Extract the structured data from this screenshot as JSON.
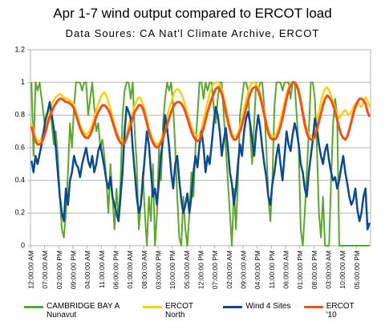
{
  "chart_data": {
    "type": "line",
    "title": "Apr 1-7 wind output compared to ERCOT load",
    "subtitle": "Data Soures: CA Nat'l Climate Archive, ERCOT",
    "ylim": [
      0,
      1.2
    ],
    "yticks": [
      0,
      0.2,
      0.4,
      0.6,
      0.8,
      1,
      1.2
    ],
    "grid": true,
    "categories": [
      "12:00:00 AM",
      null,
      null,
      null,
      null,
      null,
      null,
      "07:00:00 AM",
      null,
      null,
      null,
      null,
      null,
      null,
      "02:00:00 PM",
      null,
      null,
      null,
      null,
      null,
      null,
      "09:00:00 PM",
      null,
      null,
      null,
      null,
      null,
      null,
      "04:00:00 AM",
      null,
      null,
      null,
      null,
      null,
      null,
      "11:00:00 AM",
      null,
      null,
      null,
      null,
      null,
      null,
      "06:00:00 PM",
      null,
      null,
      null,
      null,
      null,
      null,
      "01:00:00 AM",
      null,
      null,
      null,
      null,
      null,
      null,
      "08:00:00 AM",
      null,
      null,
      null,
      null,
      null,
      null,
      "03:00:00 PM",
      null,
      null,
      null,
      null,
      null,
      null,
      "10:00:00 PM",
      null,
      null,
      null,
      null,
      null,
      null,
      "05:00:00 AM",
      null,
      null,
      null,
      null,
      null,
      null,
      "12:00:00 PM",
      null,
      null,
      null,
      null,
      null,
      null,
      "07:00:00 PM",
      null,
      null,
      null,
      null,
      null,
      null,
      "02:00:00 AM",
      null,
      null,
      null,
      null,
      null,
      null,
      "09:00:00 AM",
      null,
      null,
      null,
      null,
      null,
      null,
      "04:00:00 PM",
      null,
      null,
      null,
      null,
      null,
      null,
      "11:00:00 PM",
      null,
      null,
      null,
      null,
      null,
      null,
      "06:00:00 AM",
      null,
      null,
      null,
      null,
      null,
      null,
      "01:00:00 PM",
      null,
      null,
      null,
      null,
      null,
      null,
      "08:00:00 PM",
      null,
      null,
      null,
      null,
      null,
      null,
      "03:00:00 AM",
      null,
      null,
      null,
      null,
      null,
      null,
      "10:00:00 AM",
      null,
      null,
      null,
      null,
      null,
      null,
      "05:00:00 PM",
      null,
      null,
      null,
      null,
      null,
      null
    ],
    "series": [
      {
        "name": "CAMBRIDGE BAY A Nunavut",
        "color": "#5ea52d",
        "width": 2,
        "values": [
          1.0,
          0.55,
          1.0,
          0.95,
          1.0,
          0.9,
          0.8,
          0.7,
          0.82,
          0.88,
          0.75,
          0.62,
          0.7,
          0.55,
          0.3,
          0.1,
          0.05,
          0.2,
          0.45,
          0.75,
          0.6,
          0.85,
          1.0,
          1.0,
          1.0,
          0.95,
          1.0,
          1.0,
          0.8,
          0.9,
          1.0,
          0.85,
          0.7,
          0.75,
          0.6,
          0.65,
          0.55,
          0.4,
          0.2,
          0.5,
          0.3,
          0.1,
          0.35,
          0.15,
          0.4,
          0.8,
          0.95,
          1.0,
          1.0,
          0.9,
          1.0,
          0.7,
          0.5,
          0.1,
          0.25,
          0.45,
          0.2,
          0.0,
          0.3,
          0.15,
          0.5,
          0.0,
          0.2,
          0.6,
          0.4,
          0.75,
          0.9,
          1.0,
          0.95,
          1.0,
          0.85,
          0.6,
          0.3,
          0.05,
          0.0,
          0.3,
          0.1,
          0.0,
          0.2,
          0.45,
          0.3,
          0.6,
          0.8,
          1.0,
          1.0,
          0.9,
          1.0,
          0.95,
          1.0,
          1.0,
          0.85,
          0.75,
          0.9,
          1.0,
          1.0,
          0.8,
          0.6,
          0.4,
          0.2,
          0.0,
          0.35,
          0.1,
          0.4,
          0.8,
          0.9,
          1.0,
          1.0,
          0.95,
          0.7,
          0.5,
          0.75,
          1.0,
          0.95,
          1.0,
          1.0,
          0.85,
          0.6,
          0.3,
          0.15,
          0.4,
          0.85,
          1.0,
          1.0,
          1.0,
          0.95,
          1.0,
          1.0,
          1.0,
          0.9,
          1.0,
          1.0,
          0.8,
          0.6,
          0.1,
          0.0,
          0.2,
          0.45,
          0.7,
          1.0,
          1.0,
          0.9,
          0.6,
          0.2,
          0.05,
          0.3,
          0.0,
          0.0,
          0.0,
          0.4,
          0.75,
          0.9,
          0.8,
          0.0,
          0.0,
          0.0,
          0.0,
          0.0,
          0.0,
          0.0,
          0.0,
          0.0,
          0.0,
          0.0,
          0.0,
          0.0,
          0.0,
          0.0,
          0.0
        ]
      },
      {
        "name": "ERCOT North",
        "color": "#f7d117",
        "width": 2.5,
        "values": [
          0.75,
          0.7,
          0.66,
          0.64,
          0.64,
          0.66,
          0.7,
          0.74,
          0.79,
          0.83,
          0.86,
          0.89,
          0.91,
          0.92,
          0.93,
          0.92,
          0.91,
          0.9,
          0.9,
          0.89,
          0.88,
          0.86,
          0.82,
          0.78,
          0.74,
          0.71,
          0.69,
          0.68,
          0.69,
          0.71,
          0.74,
          0.79,
          0.83,
          0.87,
          0.9,
          0.93,
          0.94,
          0.92,
          0.88,
          0.84,
          0.79,
          0.74,
          0.7,
          0.67,
          0.65,
          0.64,
          0.65,
          0.69,
          0.74,
          0.78,
          0.82,
          0.86,
          0.89,
          0.91,
          0.9,
          0.87,
          0.83,
          0.77,
          0.72,
          0.68,
          0.65,
          0.63,
          0.62,
          0.63,
          0.65,
          0.69,
          0.74,
          0.79,
          0.84,
          0.88,
          0.92,
          0.95,
          0.96,
          0.95,
          0.93,
          0.9,
          0.86,
          0.81,
          0.77,
          0.73,
          0.7,
          0.68,
          0.67,
          0.68,
          0.72,
          0.77,
          0.83,
          0.88,
          0.93,
          0.97,
          0.99,
          1.0,
          1.0,
          0.99,
          0.96,
          0.91,
          0.85,
          0.79,
          0.73,
          0.69,
          0.67,
          0.67,
          0.69,
          0.73,
          0.78,
          0.84,
          0.89,
          0.94,
          0.98,
          1.0,
          1.0,
          0.99,
          0.97,
          0.93,
          0.88,
          0.82,
          0.76,
          0.71,
          0.68,
          0.67,
          0.67,
          0.69,
          0.72,
          0.77,
          0.82,
          0.88,
          0.93,
          0.97,
          0.99,
          1.0,
          1.0,
          0.99,
          0.96,
          0.9,
          0.83,
          0.76,
          0.71,
          0.68,
          0.67,
          0.68,
          0.71,
          0.76,
          0.82,
          0.88,
          0.93,
          0.96,
          0.97,
          0.95,
          0.92,
          0.88,
          0.84,
          0.8,
          0.78,
          0.8,
          0.82,
          0.83,
          0.81,
          0.8,
          0.82,
          0.85,
          0.87,
          0.88,
          0.86,
          0.85,
          0.88,
          0.91,
          0.89,
          0.85
        ]
      },
      {
        "name": "Wind 4 Sites",
        "color": "#0d4a8c",
        "width": 2.5,
        "values": [
          0.52,
          0.45,
          0.55,
          0.5,
          0.56,
          0.62,
          0.7,
          0.78,
          0.82,
          0.88,
          0.8,
          0.72,
          0.6,
          0.45,
          0.3,
          0.2,
          0.15,
          0.35,
          0.25,
          0.4,
          0.45,
          0.55,
          0.5,
          0.48,
          0.42,
          0.5,
          0.55,
          0.6,
          0.52,
          0.48,
          0.55,
          0.45,
          0.5,
          0.58,
          0.62,
          0.55,
          0.48,
          0.4,
          0.35,
          0.42,
          0.3,
          0.25,
          0.2,
          0.15,
          0.3,
          0.45,
          0.7,
          0.85,
          0.82,
          0.78,
          0.6,
          0.45,
          0.3,
          0.2,
          0.25,
          0.4,
          0.55,
          0.7,
          0.62,
          0.45,
          0.3,
          0.35,
          0.25,
          0.4,
          0.55,
          0.65,
          0.8,
          0.72,
          0.6,
          0.45,
          0.35,
          0.5,
          0.55,
          0.4,
          0.28,
          0.2,
          0.25,
          0.32,
          0.2,
          0.3,
          0.45,
          0.55,
          0.48,
          0.62,
          0.7,
          0.6,
          0.45,
          0.55,
          0.5,
          0.62,
          0.75,
          0.85,
          0.8,
          0.7,
          0.55,
          0.65,
          0.72,
          0.6,
          0.45,
          0.38,
          0.25,
          0.35,
          0.5,
          0.62,
          0.55,
          0.7,
          0.78,
          0.82,
          0.75,
          0.65,
          0.55,
          0.7,
          0.8,
          0.72,
          0.6,
          0.5,
          0.42,
          0.3,
          0.25,
          0.38,
          0.45,
          0.55,
          0.62,
          0.5,
          0.4,
          0.55,
          0.7,
          0.62,
          0.58,
          0.68,
          0.75,
          0.7,
          0.62,
          0.5,
          0.45,
          0.35,
          0.3,
          0.45,
          0.55,
          0.65,
          0.78,
          0.72,
          0.62,
          0.55,
          0.5,
          0.58,
          0.62,
          0.52,
          0.45,
          0.4,
          0.42,
          0.35,
          0.4,
          0.48,
          0.55,
          0.45,
          0.38,
          0.3,
          0.25,
          0.28,
          0.35,
          0.22,
          0.15,
          0.2,
          0.3,
          0.35,
          0.1,
          0.14
        ]
      },
      {
        "name": "ERCOT '10",
        "color": "#f2501a",
        "width": 3,
        "values": [
          0.73,
          0.68,
          0.64,
          0.62,
          0.62,
          0.63,
          0.66,
          0.7,
          0.75,
          0.79,
          0.82,
          0.85,
          0.87,
          0.89,
          0.9,
          0.9,
          0.89,
          0.88,
          0.88,
          0.87,
          0.86,
          0.84,
          0.8,
          0.76,
          0.72,
          0.69,
          0.67,
          0.66,
          0.66,
          0.68,
          0.71,
          0.75,
          0.79,
          0.82,
          0.84,
          0.86,
          0.86,
          0.85,
          0.83,
          0.8,
          0.76,
          0.72,
          0.68,
          0.65,
          0.63,
          0.62,
          0.63,
          0.66,
          0.7,
          0.74,
          0.78,
          0.82,
          0.84,
          0.86,
          0.86,
          0.84,
          0.8,
          0.75,
          0.7,
          0.66,
          0.63,
          0.61,
          0.6,
          0.61,
          0.63,
          0.66,
          0.7,
          0.74,
          0.78,
          0.82,
          0.85,
          0.87,
          0.88,
          0.88,
          0.87,
          0.85,
          0.82,
          0.78,
          0.74,
          0.7,
          0.67,
          0.65,
          0.64,
          0.65,
          0.68,
          0.72,
          0.77,
          0.82,
          0.86,
          0.9,
          0.93,
          0.96,
          0.97,
          0.96,
          0.93,
          0.88,
          0.82,
          0.76,
          0.71,
          0.67,
          0.65,
          0.65,
          0.67,
          0.7,
          0.74,
          0.79,
          0.84,
          0.89,
          0.93,
          0.96,
          0.97,
          0.97,
          0.95,
          0.91,
          0.86,
          0.8,
          0.74,
          0.69,
          0.66,
          0.65,
          0.65,
          0.66,
          0.69,
          0.73,
          0.78,
          0.84,
          0.9,
          0.95,
          0.98,
          1.0,
          1.0,
          0.98,
          0.94,
          0.88,
          0.81,
          0.74,
          0.69,
          0.66,
          0.65,
          0.65,
          0.67,
          0.71,
          0.76,
          0.81,
          0.86,
          0.9,
          0.92,
          0.91,
          0.89,
          0.86,
          0.82,
          0.77,
          0.72,
          0.68,
          0.66,
          0.65,
          0.67,
          0.71,
          0.76,
          0.81,
          0.85,
          0.88,
          0.9,
          0.9,
          0.89,
          0.87,
          0.82,
          0.79
        ]
      }
    ]
  }
}
